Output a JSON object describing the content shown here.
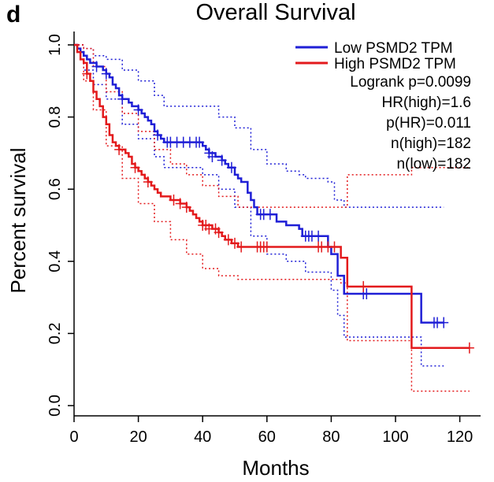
{
  "panel_letter": "d",
  "colors": {
    "low": "#1f1fd6",
    "high": "#e31a1c",
    "axis": "#000000"
  },
  "chart_data": {
    "type": "line",
    "title": "Overall Survival",
    "xlabel": "Months",
    "ylabel": "Percent survival",
    "xlim": [
      0,
      125
    ],
    "ylim": [
      0,
      1.0
    ],
    "x_ticks": [
      "0",
      "20",
      "40",
      "60",
      "80",
      "100",
      "120"
    ],
    "x_tick_values": [
      0,
      20,
      40,
      60,
      80,
      100,
      120
    ],
    "y_ticks": [
      "0.0",
      "0.2",
      "0.4",
      "0.6",
      "0.8",
      "1.0"
    ],
    "y_tick_values": [
      0,
      0.2,
      0.4,
      0.6,
      0.8,
      1.0
    ],
    "legend_position": "top-right",
    "legend": [
      "Low PSMD2 TPM",
      "High PSMD2 TPM"
    ],
    "annotations": [
      "Logrank p=0.0099",
      "HR(high)=1.6",
      "p(HR)=0.011",
      "n(high)=182",
      "n(low)=182"
    ],
    "series": [
      {
        "name": "Low PSMD2 TPM",
        "color": "#1f1fd6",
        "steps": [
          [
            0,
            1.0
          ],
          [
            1,
            0.99
          ],
          [
            2,
            0.98
          ],
          [
            3,
            0.97
          ],
          [
            4,
            0.96
          ],
          [
            5,
            0.95
          ],
          [
            7,
            0.94
          ],
          [
            9,
            0.93
          ],
          [
            10,
            0.92
          ],
          [
            11,
            0.91
          ],
          [
            12,
            0.89
          ],
          [
            13,
            0.88
          ],
          [
            14,
            0.86
          ],
          [
            15,
            0.85
          ],
          [
            17,
            0.84
          ],
          [
            18,
            0.83
          ],
          [
            20,
            0.82
          ],
          [
            21,
            0.81
          ],
          [
            22,
            0.8
          ],
          [
            23,
            0.79
          ],
          [
            24,
            0.78
          ],
          [
            25,
            0.76
          ],
          [
            26,
            0.75
          ],
          [
            27,
            0.74
          ],
          [
            28,
            0.73
          ],
          [
            40,
            0.72
          ],
          [
            41,
            0.71
          ],
          [
            42,
            0.7
          ],
          [
            44,
            0.69
          ],
          [
            46,
            0.68
          ],
          [
            47,
            0.67
          ],
          [
            48,
            0.66
          ],
          [
            50,
            0.64
          ],
          [
            51,
            0.63
          ],
          [
            52,
            0.62
          ],
          [
            54,
            0.59
          ],
          [
            55,
            0.57
          ],
          [
            56,
            0.55
          ],
          [
            57,
            0.53
          ],
          [
            63,
            0.51
          ],
          [
            66,
            0.5
          ],
          [
            70,
            0.49
          ],
          [
            71,
            0.47
          ],
          [
            79,
            0.44
          ],
          [
            80,
            0.42
          ],
          [
            82,
            0.36
          ],
          [
            84,
            0.31
          ],
          [
            108,
            0.23
          ],
          [
            115,
            0.23
          ]
        ],
        "censor": [
          [
            7,
            0.94
          ],
          [
            10,
            0.92
          ],
          [
            15,
            0.85
          ],
          [
            20,
            0.82
          ],
          [
            26,
            0.75
          ],
          [
            29,
            0.73
          ],
          [
            30,
            0.73
          ],
          [
            32,
            0.73
          ],
          [
            34,
            0.73
          ],
          [
            36,
            0.73
          ],
          [
            38,
            0.73
          ],
          [
            39,
            0.73
          ],
          [
            42,
            0.7
          ],
          [
            43,
            0.69
          ],
          [
            46,
            0.68
          ],
          [
            49,
            0.66
          ],
          [
            58,
            0.53
          ],
          [
            59,
            0.53
          ],
          [
            61,
            0.53
          ],
          [
            72,
            0.47
          ],
          [
            73,
            0.47
          ],
          [
            74,
            0.47
          ],
          [
            76,
            0.47
          ],
          [
            90,
            0.31
          ],
          [
            91,
            0.31
          ],
          [
            112,
            0.23
          ],
          [
            113,
            0.23
          ],
          [
            115,
            0.23
          ]
        ],
        "ci_upper": [
          [
            0,
            1.0
          ],
          [
            3,
            0.99
          ],
          [
            6,
            0.97
          ],
          [
            10,
            0.96
          ],
          [
            15,
            0.93
          ],
          [
            20,
            0.9
          ],
          [
            25,
            0.86
          ],
          [
            28,
            0.83
          ],
          [
            40,
            0.83
          ],
          [
            45,
            0.8
          ],
          [
            50,
            0.77
          ],
          [
            55,
            0.71
          ],
          [
            60,
            0.67
          ],
          [
            66,
            0.65
          ],
          [
            70,
            0.64
          ],
          [
            72,
            0.63
          ],
          [
            79,
            0.62
          ],
          [
            81,
            0.57
          ],
          [
            84,
            0.55
          ],
          [
            108,
            0.55
          ],
          [
            115,
            0.55
          ]
        ],
        "ci_lower": [
          [
            0,
            1.0
          ],
          [
            3,
            0.93
          ],
          [
            6,
            0.89
          ],
          [
            10,
            0.85
          ],
          [
            15,
            0.78
          ],
          [
            20,
            0.74
          ],
          [
            25,
            0.69
          ],
          [
            28,
            0.66
          ],
          [
            40,
            0.64
          ],
          [
            45,
            0.6
          ],
          [
            50,
            0.55
          ],
          [
            55,
            0.47
          ],
          [
            60,
            0.42
          ],
          [
            66,
            0.4
          ],
          [
            72,
            0.37
          ],
          [
            80,
            0.32
          ],
          [
            82,
            0.25
          ],
          [
            84,
            0.19
          ],
          [
            100,
            0.19
          ],
          [
            108,
            0.11
          ],
          [
            115,
            0.11
          ]
        ]
      },
      {
        "name": "High PSMD2 TPM",
        "color": "#e31a1c",
        "steps": [
          [
            0,
            1.0
          ],
          [
            1,
            0.98
          ],
          [
            2,
            0.96
          ],
          [
            3,
            0.95
          ],
          [
            4,
            0.92
          ],
          [
            5,
            0.9
          ],
          [
            6,
            0.87
          ],
          [
            7,
            0.85
          ],
          [
            8,
            0.83
          ],
          [
            9,
            0.8
          ],
          [
            10,
            0.78
          ],
          [
            11,
            0.75
          ],
          [
            12,
            0.73
          ],
          [
            13,
            0.72
          ],
          [
            14,
            0.71
          ],
          [
            16,
            0.7
          ],
          [
            17,
            0.69
          ],
          [
            18,
            0.67
          ],
          [
            19,
            0.66
          ],
          [
            20,
            0.65
          ],
          [
            21,
            0.64
          ],
          [
            22,
            0.63
          ],
          [
            23,
            0.62
          ],
          [
            24,
            0.61
          ],
          [
            25,
            0.6
          ],
          [
            26,
            0.59
          ],
          [
            27,
            0.58
          ],
          [
            30,
            0.57
          ],
          [
            33,
            0.56
          ],
          [
            35,
            0.55
          ],
          [
            36,
            0.54
          ],
          [
            37,
            0.53
          ],
          [
            38,
            0.52
          ],
          [
            39,
            0.51
          ],
          [
            40,
            0.5
          ],
          [
            43,
            0.49
          ],
          [
            45,
            0.48
          ],
          [
            46,
            0.47
          ],
          [
            47,
            0.46
          ],
          [
            49,
            0.45
          ],
          [
            51,
            0.44
          ],
          [
            83,
            0.41
          ],
          [
            85,
            0.33
          ],
          [
            105,
            0.16
          ],
          [
            123,
            0.16
          ]
        ],
        "censor": [
          [
            4,
            0.92
          ],
          [
            14,
            0.71
          ],
          [
            19,
            0.66
          ],
          [
            23,
            0.62
          ],
          [
            31,
            0.57
          ],
          [
            33,
            0.56
          ],
          [
            35,
            0.55
          ],
          [
            40,
            0.5
          ],
          [
            41,
            0.5
          ],
          [
            42,
            0.49
          ],
          [
            44,
            0.49
          ],
          [
            45,
            0.48
          ],
          [
            48,
            0.46
          ],
          [
            50,
            0.45
          ],
          [
            52,
            0.44
          ],
          [
            57,
            0.44
          ],
          [
            58,
            0.44
          ],
          [
            59,
            0.44
          ],
          [
            60,
            0.44
          ],
          [
            76,
            0.44
          ],
          [
            77,
            0.44
          ],
          [
            79,
            0.44
          ],
          [
            81,
            0.44
          ],
          [
            90,
            0.33
          ],
          [
            123,
            0.16
          ]
        ],
        "ci_upper": [
          [
            0,
            1.0
          ],
          [
            3,
            0.99
          ],
          [
            6,
            0.94
          ],
          [
            10,
            0.87
          ],
          [
            15,
            0.81
          ],
          [
            20,
            0.76
          ],
          [
            25,
            0.71
          ],
          [
            30,
            0.67
          ],
          [
            35,
            0.64
          ],
          [
            40,
            0.61
          ],
          [
            45,
            0.58
          ],
          [
            51,
            0.55
          ],
          [
            83,
            0.55
          ],
          [
            85,
            0.64
          ],
          [
            105,
            0.66
          ],
          [
            123,
            0.66
          ]
        ],
        "ci_lower": [
          [
            0,
            1.0
          ],
          [
            3,
            0.9
          ],
          [
            6,
            0.82
          ],
          [
            10,
            0.72
          ],
          [
            15,
            0.63
          ],
          [
            20,
            0.56
          ],
          [
            25,
            0.51
          ],
          [
            30,
            0.46
          ],
          [
            35,
            0.42
          ],
          [
            40,
            0.38
          ],
          [
            45,
            0.36
          ],
          [
            51,
            0.35
          ],
          [
            83,
            0.34
          ],
          [
            85,
            0.18
          ],
          [
            105,
            0.04
          ],
          [
            123,
            0.04
          ]
        ]
      }
    ]
  }
}
